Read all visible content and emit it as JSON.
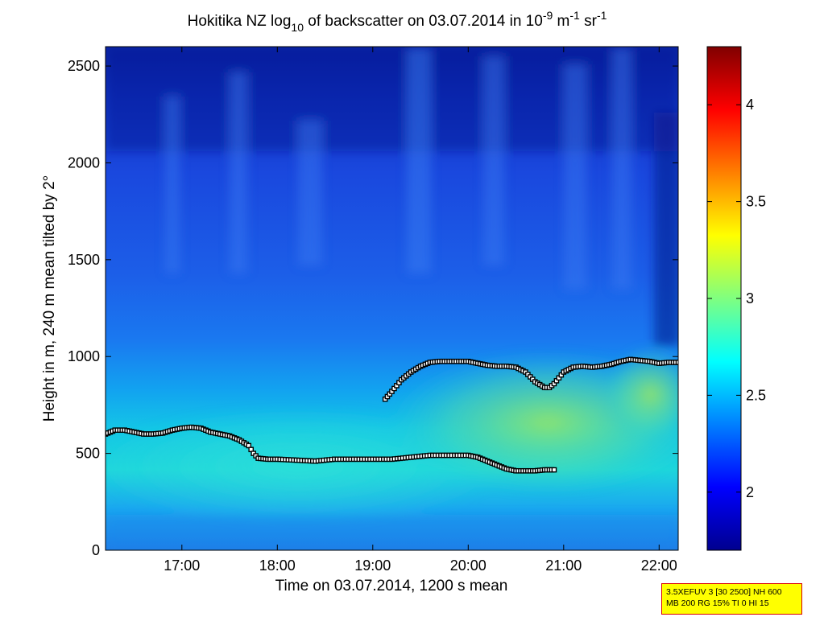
{
  "chart_data": {
    "type": "heatmap",
    "title": {
      "prefix": "Hokitika NZ log",
      "sub": "10",
      "middle": " of backscatter on 03.07.2014 in 10",
      "exp1": "-9",
      "unit1": " m",
      "exp2": "-1",
      "unit2": " sr",
      "exp3": "-1"
    },
    "xlabel": "Time on 03.07.2014, 1200 s mean",
    "ylabel": "Height in m, 240 m mean tilted by 2°",
    "xlim": [
      16.2,
      22.2
    ],
    "ylim": [
      0,
      2600
    ],
    "x_ticks": [
      {
        "value": 17,
        "label": "17:00"
      },
      {
        "value": 18,
        "label": "18:00"
      },
      {
        "value": 19,
        "label": "19:00"
      },
      {
        "value": 20,
        "label": "20:00"
      },
      {
        "value": 21,
        "label": "21:00"
      },
      {
        "value": 22,
        "label": "22:00"
      }
    ],
    "y_ticks": [
      {
        "value": 0,
        "label": "0"
      },
      {
        "value": 500,
        "label": "500"
      },
      {
        "value": 1000,
        "label": "1000"
      },
      {
        "value": 1500,
        "label": "1500"
      },
      {
        "value": 2000,
        "label": "2000"
      },
      {
        "value": 2500,
        "label": "2500"
      }
    ],
    "colorbar": {
      "range": [
        1.7,
        4.3
      ],
      "ticks": [
        {
          "value": 2,
          "label": "2"
        },
        {
          "value": 2.5,
          "label": "2.5"
        },
        {
          "value": 3,
          "label": "3"
        },
        {
          "value": 3.5,
          "label": "3.5"
        },
        {
          "value": 4,
          "label": "4"
        }
      ]
    },
    "series": [
      {
        "name": "upper layer height",
        "x": [
          19.13,
          19.2,
          19.3,
          19.4,
          19.5,
          19.6,
          19.7,
          19.8,
          19.9,
          20.0,
          20.1,
          20.2,
          20.3,
          20.4,
          20.5,
          20.6,
          20.7,
          20.8,
          20.85,
          20.9,
          21.0,
          21.1,
          21.2,
          21.3,
          21.4,
          21.5,
          21.6,
          21.7,
          21.8,
          21.9,
          22.0,
          22.1,
          22.2
        ],
        "y": [
          780,
          820,
          880,
          920,
          950,
          970,
          975,
          975,
          975,
          975,
          965,
          955,
          950,
          950,
          945,
          920,
          870,
          840,
          840,
          860,
          920,
          945,
          950,
          945,
          950,
          960,
          975,
          985,
          980,
          975,
          965,
          970,
          970
        ]
      },
      {
        "name": "lower layer height",
        "x": [
          16.2,
          16.3,
          16.4,
          16.5,
          16.6,
          16.7,
          16.8,
          16.9,
          17.0,
          17.1,
          17.2,
          17.3,
          17.4,
          17.5,
          17.6,
          17.7,
          17.75,
          17.8,
          17.9,
          18.0,
          18.2,
          18.4,
          18.6,
          18.8,
          19.0,
          19.2,
          19.4,
          19.6,
          19.8,
          20.0,
          20.1,
          20.2,
          20.3,
          20.4,
          20.5,
          20.6,
          20.7,
          20.8,
          20.9
        ],
        "y": [
          600,
          620,
          620,
          610,
          600,
          600,
          605,
          620,
          630,
          635,
          630,
          610,
          600,
          590,
          570,
          540,
          500,
          475,
          470,
          470,
          465,
          460,
          470,
          470,
          470,
          470,
          480,
          490,
          490,
          490,
          480,
          460,
          440,
          420,
          410,
          410,
          410,
          415,
          415
        ]
      }
    ]
  },
  "params_box": {
    "line1": "3.5XEFUV 3 [30 2500] NH 600",
    "line2": "MB 200 RG 15% TI 0 HI 15"
  }
}
